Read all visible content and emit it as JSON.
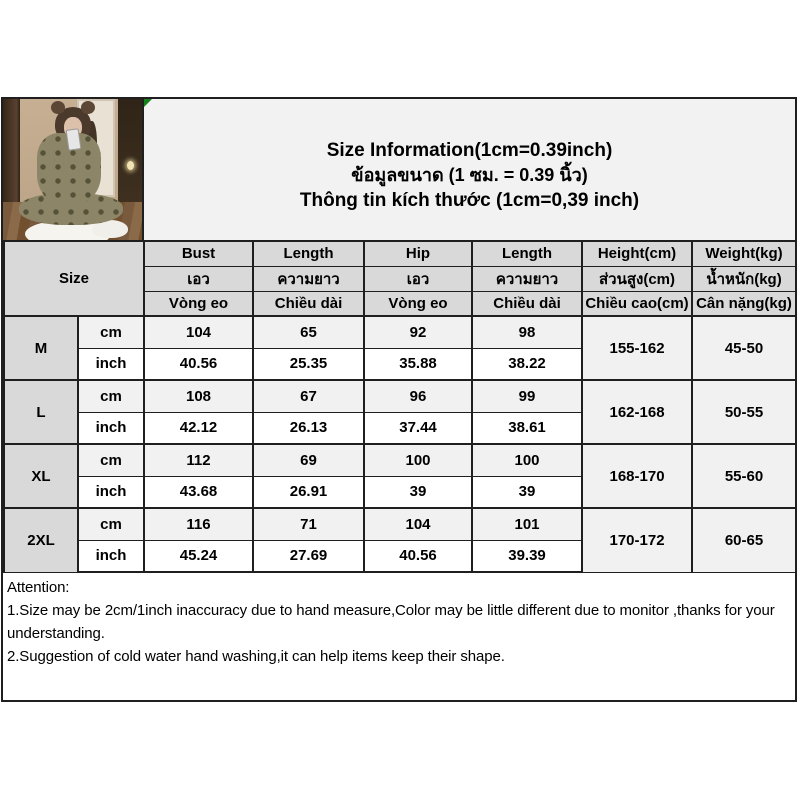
{
  "title": {
    "line1": "Size Information(1cm=0.39inch)",
    "line2": "ข้อมูลขนาด (1 ซม. = 0.39 นิ้ว)",
    "line3": "Thông tin kích thước (1cm=0,39 inch)"
  },
  "table": {
    "size_label": "Size",
    "headers_en": [
      "Bust",
      "Length",
      "Hip",
      "Length",
      "Height(cm)",
      "Weight(kg)"
    ],
    "headers_th": [
      "เอว",
      "ความยาว",
      "เอว",
      "ความยาว",
      "ส่วนสูง(cm)",
      "น้ำหนัก(kg)"
    ],
    "headers_vi": [
      "Vòng eo",
      "Chiều dài",
      "Vòng eo",
      "Chiều dài",
      "Chiều cao(cm)",
      "Cân nặng(kg)"
    ],
    "unit_cm": "cm",
    "unit_inch": "inch",
    "rows": [
      {
        "size": "M",
        "cm": [
          "104",
          "65",
          "92",
          "98"
        ],
        "inch": [
          "40.56",
          "25.35",
          "35.88",
          "38.22"
        ],
        "height": "155-162",
        "weight": "45-50"
      },
      {
        "size": "L",
        "cm": [
          "108",
          "67",
          "96",
          "99"
        ],
        "inch": [
          "42.12",
          "26.13",
          "37.44",
          "38.61"
        ],
        "height": "162-168",
        "weight": "50-55"
      },
      {
        "size": "XL",
        "cm": [
          "112",
          "69",
          "100",
          "100"
        ],
        "inch": [
          "43.68",
          "26.91",
          "39",
          "39"
        ],
        "height": "168-170",
        "weight": "55-60"
      },
      {
        "size": "2XL",
        "cm": [
          "116",
          "71",
          "104",
          "101"
        ],
        "inch": [
          "45.24",
          "27.69",
          "40.56",
          "39.39"
        ],
        "height": "170-172",
        "weight": "60-65"
      }
    ]
  },
  "attention": {
    "heading": "Attention:",
    "note1": "1.Size may be 2cm/1inch inaccuracy due to hand measure,Color may be little different due to monitor ,thanks for your understanding.",
    "note2": "2.Suggestion of cold water hand washing,it can help items keep their shape."
  },
  "colors": {
    "border": "#1f1f1f",
    "header_gray": "#d9d9d9",
    "row_light_gray": "#f1f1f1",
    "title_bg": "#f2f2f2",
    "excel_corner_green": "#17801c",
    "text": "#000000"
  }
}
